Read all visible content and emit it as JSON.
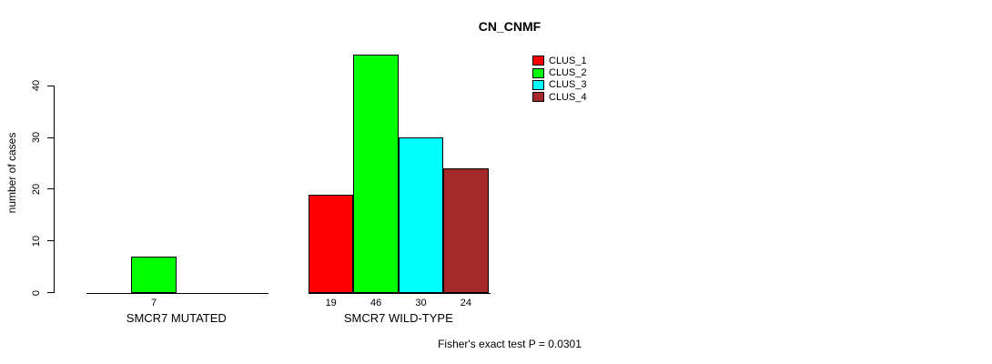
{
  "chart_data": {
    "type": "bar",
    "title": "CN_CNMF",
    "ylabel": "number of cases",
    "ylim": [
      0,
      40
    ],
    "yticks": [
      0,
      10,
      20,
      30,
      40
    ],
    "grid": false,
    "legend_position": "top-right",
    "clusters": [
      {
        "name": "CLUS_1",
        "color": "#FF0000"
      },
      {
        "name": "CLUS_2",
        "color": "#00FF00"
      },
      {
        "name": "CLUS_3",
        "color": "#00FFFF"
      },
      {
        "name": "CLUS_4",
        "color": "#A52A2A"
      }
    ],
    "groups": [
      {
        "label": "SMCR7 MUTATED",
        "values": [
          null,
          7,
          null,
          null
        ],
        "value_labels": [
          null,
          "7",
          null,
          null
        ]
      },
      {
        "label": "SMCR7 WILD-TYPE",
        "values": [
          19,
          46,
          30,
          24
        ],
        "value_labels": [
          "19",
          "46",
          "30",
          "24"
        ]
      }
    ],
    "annotation": "Fisher's exact test P = 0.0301"
  }
}
